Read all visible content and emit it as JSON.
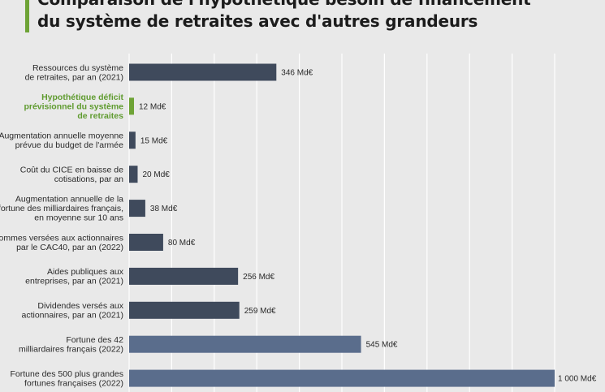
{
  "title": {
    "line1": "Comparaison de l'hypothétique besoin de financement",
    "line2": "du système de retraites avec d'autres grandeurs"
  },
  "colors": {
    "bar_dark": "#3f4a5c",
    "bar_light": "#5a6d8c",
    "highlight": "#6ea336",
    "highlight_text": "#5f9b2f",
    "background": "#e9e9e9",
    "grid": "#ffffff"
  },
  "chart_data": {
    "type": "bar",
    "orientation": "horizontal",
    "xlim": [
      0,
      1000
    ],
    "grid": true,
    "categories": [
      [
        "Ressources du système",
        "de retraites, par an (2021)"
      ],
      [
        "Hypothétique déficit",
        "prévisionnel du système",
        "de retraites"
      ],
      [
        "Augmentation annuelle moyenne",
        "prévue du budget de l'armée"
      ],
      [
        "Coût du CICE en baisse de",
        "cotisations, par an"
      ],
      [
        "Augmentation annuelle de la",
        "fortune des milliardaires français,",
        "en moyenne sur 10 ans"
      ],
      [
        "Sommes versées aux actionnaires",
        "par le CAC40, par an (2022)"
      ],
      [
        "Aides publiques aux",
        "entreprises, par an (2021)"
      ],
      [
        "Dividendes versés aux",
        "actionnaires, par an (2021)"
      ],
      [
        "Fortune des 42",
        "milliardaires français (2022)"
      ],
      [
        "Fortune des 500 plus grandes",
        "fortunes françaises (2022)"
      ]
    ],
    "values": [
      346,
      12,
      15,
      20,
      38,
      80,
      256,
      259,
      545,
      1000
    ],
    "value_labels": [
      "346 Md€",
      "12 Md€",
      "15 Md€",
      "20 Md€",
      "38 Md€",
      "80 Md€",
      "256 Md€",
      "259 Md€",
      "545 Md€",
      "1 000 Md€"
    ],
    "highlight_index": 1,
    "light_indices": [
      8,
      9
    ]
  }
}
